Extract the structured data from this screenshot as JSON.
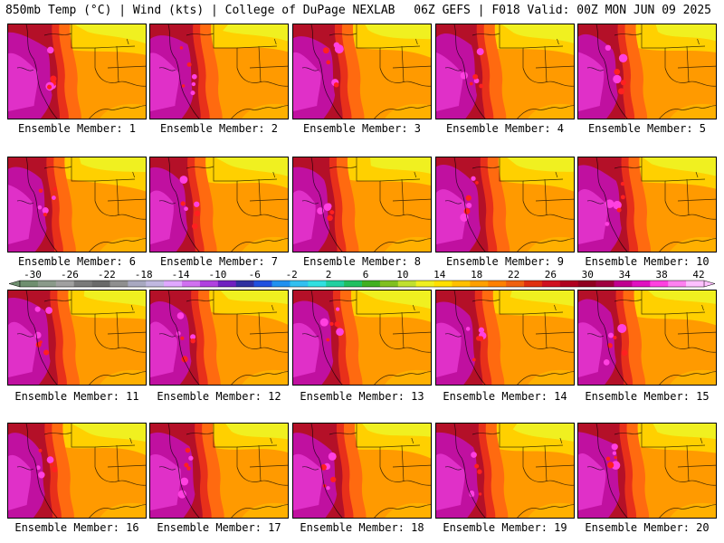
{
  "header": {
    "left": "850mb Temp (°C) | Wind (kts) | College of DuPage NEXLAB",
    "right": "06Z GEFS | F018 Valid: 00Z MON JUN 09 2025"
  },
  "colorbar": {
    "labels": [
      "-30",
      "-26",
      "-22",
      "-18",
      "-14",
      "-10",
      "-6",
      "-2",
      "2",
      "6",
      "10",
      "14",
      "18",
      "22",
      "26",
      "30",
      "34",
      "38",
      "42"
    ],
    "colors": [
      "#6f8f6f",
      "#8a9a8a",
      "#a0a0a0",
      "#7a7a7a",
      "#6a6a6a",
      "#8f8f8f",
      "#a8a8c0",
      "#c0b8e0",
      "#e0a8ff",
      "#d070f0",
      "#b040e0",
      "#7020c0",
      "#3030a0",
      "#2050e0",
      "#2090f0",
      "#30c0f0",
      "#30e0e0",
      "#20d0a0",
      "#20c060",
      "#40b020",
      "#80c020",
      "#c0e030",
      "#f0f020",
      "#ffe000",
      "#ffc000",
      "#ffa000",
      "#ff8000",
      "#f06010",
      "#e03010",
      "#d01020",
      "#b00020",
      "#900020",
      "#a00040",
      "#c00090",
      "#e010c0",
      "#ff40e0",
      "#ff80f0",
      "#ffc0ff"
    ]
  },
  "members": [
    {
      "label": "Ensemble Member: 1"
    },
    {
      "label": "Ensemble Member: 2"
    },
    {
      "label": "Ensemble Member: 3"
    },
    {
      "label": "Ensemble Member: 4"
    },
    {
      "label": "Ensemble Member: 5"
    },
    {
      "label": "Ensemble Member: 6"
    },
    {
      "label": "Ensemble Member: 7"
    },
    {
      "label": "Ensemble Member: 8"
    },
    {
      "label": "Ensemble Member: 9"
    },
    {
      "label": "Ensemble Member: 10"
    },
    {
      "label": "Ensemble Member: 11"
    },
    {
      "label": "Ensemble Member: 12"
    },
    {
      "label": "Ensemble Member: 13"
    },
    {
      "label": "Ensemble Member: 14"
    },
    {
      "label": "Ensemble Member: 15"
    },
    {
      "label": "Ensemble Member: 16"
    },
    {
      "label": "Ensemble Member: 17"
    },
    {
      "label": "Ensemble Member: 18"
    },
    {
      "label": "Ensemble Member: 19"
    },
    {
      "label": "Ensemble Member: 20"
    }
  ]
}
